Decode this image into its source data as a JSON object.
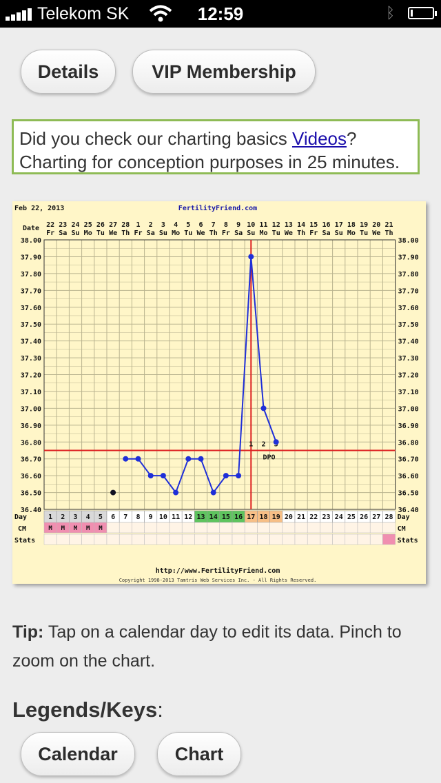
{
  "status_bar": {
    "carrier": "Telekom SK",
    "time": "12:59"
  },
  "buttons": {
    "details": "Details",
    "vip": "VIP Membership",
    "calendar": "Calendar",
    "chart": "Chart"
  },
  "notice": {
    "line1_before": "Did you check our charting basics ",
    "link": "Videos",
    "line1_after": "?",
    "line2": "Charting for conception purposes in 25 minutes."
  },
  "chart": {
    "date": "Feb 22, 2013",
    "site": "FertilityFriend.com",
    "footer_url": "http://www.FertilityFriend.com",
    "copyright": "Copyright 1998-2013 Tamtris Web Services Inc. - All Rights Reserved.",
    "row_labels": {
      "date": "Date",
      "day": "Day",
      "cm": "CM",
      "stats": "Stats"
    },
    "dates": [
      "22",
      "23",
      "24",
      "25",
      "26",
      "27",
      "28",
      "1",
      "2",
      "3",
      "4",
      "5",
      "6",
      "7",
      "8",
      "9",
      "10",
      "11",
      "12",
      "13",
      "14",
      "15",
      "16",
      "17",
      "18",
      "19",
      "20",
      "21"
    ],
    "weekdays": [
      "Fr",
      "Sa",
      "Su",
      "Mo",
      "Tu",
      "We",
      "Th",
      "Fr",
      "Sa",
      "Su",
      "Mo",
      "Tu",
      "We",
      "Th",
      "Fr",
      "Sa",
      "Su",
      "Mo",
      "Tu",
      "We",
      "Th",
      "Fr",
      "Sa",
      "Su",
      "Mo",
      "Tu",
      "We",
      "Th"
    ],
    "cycle_days": [
      "1",
      "2",
      "3",
      "4",
      "5",
      "6",
      "7",
      "8",
      "9",
      "10",
      "11",
      "12",
      "13",
      "14",
      "15",
      "16",
      "17",
      "18",
      "19",
      "20",
      "21",
      "22",
      "23",
      "24",
      "25",
      "26",
      "27",
      "28"
    ],
    "fertile_days": [
      13,
      14,
      15,
      16
    ],
    "post_ovulation_days": [
      17,
      18,
      19
    ],
    "menstruation_days": [
      1,
      2,
      3,
      4,
      5
    ],
    "menstruation_mark": "M",
    "stats_marked_day": 28,
    "dpo_numbers": [
      "1",
      "2",
      "3"
    ],
    "dpo_label": "DPO",
    "y_ticks": [
      "38.00",
      "37.90",
      "37.80",
      "37.70",
      "37.60",
      "37.50",
      "37.40",
      "37.30",
      "37.20",
      "37.10",
      "37.00",
      "36.90",
      "36.80",
      "36.70",
      "36.60",
      "36.50",
      "36.40"
    ],
    "colors": {
      "background": "#fff6c8",
      "grid": "#b9b38f",
      "line": "#1f2fd8",
      "point": "#1f2fd8",
      "coverline": "#dd2222",
      "fertile": "#5ec45e",
      "post_ovulation": "#f7bf86",
      "menstruation": "#f08fb0",
      "site_link": "#1a1aa8"
    }
  },
  "chart_data": {
    "type": "line",
    "x": [
      6,
      7,
      8,
      9,
      10,
      11,
      12,
      13,
      14,
      15,
      16,
      17,
      18,
      19
    ],
    "series": [
      {
        "values": [
          36.5,
          null,
          null,
          null,
          null,
          null,
          null,
          null,
          null,
          null,
          null,
          null,
          null,
          null
        ],
        "isolated": true
      },
      {
        "values": [
          null,
          36.7,
          36.7,
          36.6,
          36.6,
          36.5,
          36.7,
          36.7,
          36.5,
          36.6,
          36.6,
          37.9,
          37.0,
          36.8
        ]
      }
    ],
    "xlabel": "Day",
    "ylabel": "",
    "xlim": [
      1,
      28
    ],
    "ylim": [
      36.4,
      38.0
    ],
    "coverline": 36.75,
    "ovulation_day": 16.5,
    "grid": true
  },
  "tip": {
    "label": "Tip:",
    "text": " Tap on a calendar day to edit its data. Pinch to zoom on the chart."
  },
  "legends": {
    "title": "Legends/Keys",
    "colon": ":"
  }
}
